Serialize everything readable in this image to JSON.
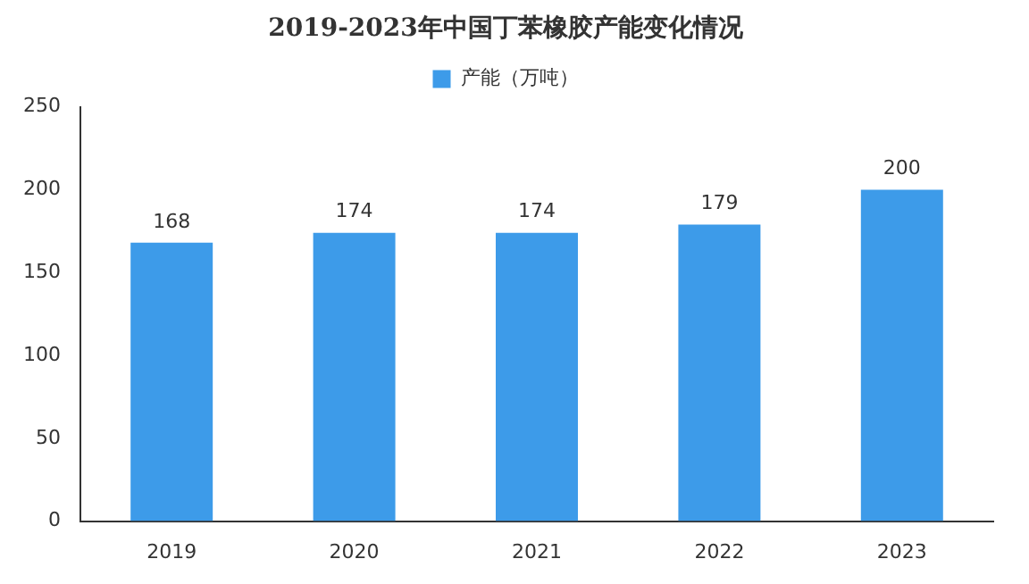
{
  "chart_data": {
    "type": "bar",
    "title": "2019-2023年中国丁苯橡胶产能变化情况",
    "categories": [
      "2019",
      "2020",
      "2021",
      "2022",
      "2023"
    ],
    "series": [
      {
        "name": "产能（万吨）",
        "color": "#3d9be9",
        "values": [
          168,
          174,
          174,
          179,
          200
        ]
      }
    ],
    "ylim": [
      0,
      250
    ],
    "yticks": [
      0,
      50,
      100,
      150,
      200,
      250
    ],
    "grid": false,
    "legend": "top",
    "data_labels": true
  }
}
